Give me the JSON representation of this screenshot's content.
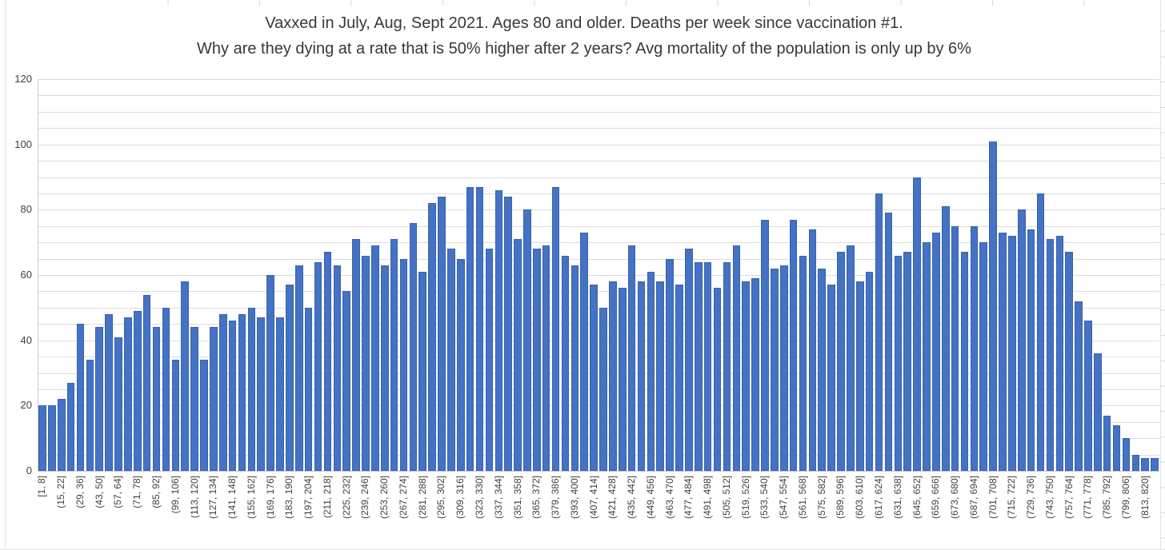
{
  "title": {
    "line1": "Vaxxed in July, Aug, Sept 2021. Ages 80 and older. Deaths per week since vaccination #1.",
    "line2": "Why are they dying at a rate that is 50% higher after 2 years? Avg mortality of the population is only up by 6%"
  },
  "chart_data": {
    "type": "bar",
    "title": "Vaxxed in July, Aug, Sept 2021. Ages 80 and older. Deaths per week since vaccination #1. Why are they dying at a rate that is 50% higher after 2 years? Avg mortality of the population is only up by 6%",
    "xlabel": "",
    "ylabel": "",
    "ylim": [
      0,
      120
    ],
    "y_ticks": [
      0,
      20,
      40,
      60,
      80,
      100,
      120
    ],
    "y_minor_step": 5,
    "grid": "on",
    "legend": "none",
    "bar_color": "#4472C4",
    "bar_border_color": "#3A62A8",
    "gridline_color": "#DCDCDC",
    "x_label_every": 2,
    "x_labels": [
      "[1, 8]",
      "(15, 22]",
      "(29, 36]",
      "(43, 50]",
      "(57, 64]",
      "(71, 78]",
      "(85, 92]",
      "(99, 106]",
      "(113, 120]",
      "(127, 134]",
      "(141, 148]",
      "(155, 162]",
      "(169, 176]",
      "(183, 190]",
      "(197, 204]",
      "(211, 218]",
      "(225, 232]",
      "(239, 246]",
      "(253, 260]",
      "(267, 274]",
      "(281, 288]",
      "(295, 302]",
      "(309, 316]",
      "(323, 330]",
      "(337, 344]",
      "(351, 358]",
      "(365, 372]",
      "(379, 386]",
      "(393, 400]",
      "(407, 414]",
      "(421, 428]",
      "(435, 442]",
      "(449, 456]",
      "(463, 470]",
      "(477, 484]",
      "(491, 498]",
      "(505, 512]",
      "(519, 526]",
      "(533, 540]",
      "(547, 554]",
      "(561, 568]",
      "(575, 582]",
      "(589, 596]",
      "(603, 610]",
      "(617, 624]",
      "(631, 638]",
      "(645, 652]",
      "(659, 666]",
      "(673, 680]",
      "(687, 694]",
      "(701, 708]",
      "(715, 722]",
      "(729, 736]",
      "(743, 750]",
      "(757, 764]",
      "(771, 778]",
      "(785, 792]",
      "(799, 806]",
      "(813, 820]"
    ],
    "values": [
      20,
      20,
      22,
      27,
      45,
      34,
      44,
      48,
      41,
      47,
      49,
      54,
      44,
      50,
      34,
      58,
      44,
      34,
      44,
      48,
      46,
      48,
      50,
      47,
      60,
      47,
      57,
      63,
      50,
      64,
      67,
      63,
      55,
      71,
      66,
      69,
      63,
      71,
      65,
      76,
      61,
      82,
      84,
      68,
      65,
      87,
      87,
      68,
      86,
      84,
      71,
      80,
      68,
      69,
      87,
      66,
      63,
      73,
      57,
      50,
      58,
      56,
      69,
      58,
      61,
      58,
      65,
      57,
      68,
      64,
      64,
      56,
      64,
      69,
      58,
      59,
      77,
      62,
      63,
      77,
      66,
      74,
      62,
      57,
      67,
      69,
      58,
      61,
      85,
      79,
      66,
      67,
      90,
      70,
      73,
      81,
      75,
      67,
      75,
      70,
      101,
      73,
      72,
      80,
      74,
      85,
      71,
      72,
      67,
      52,
      46,
      36,
      17,
      14,
      10,
      5,
      4,
      4
    ]
  }
}
